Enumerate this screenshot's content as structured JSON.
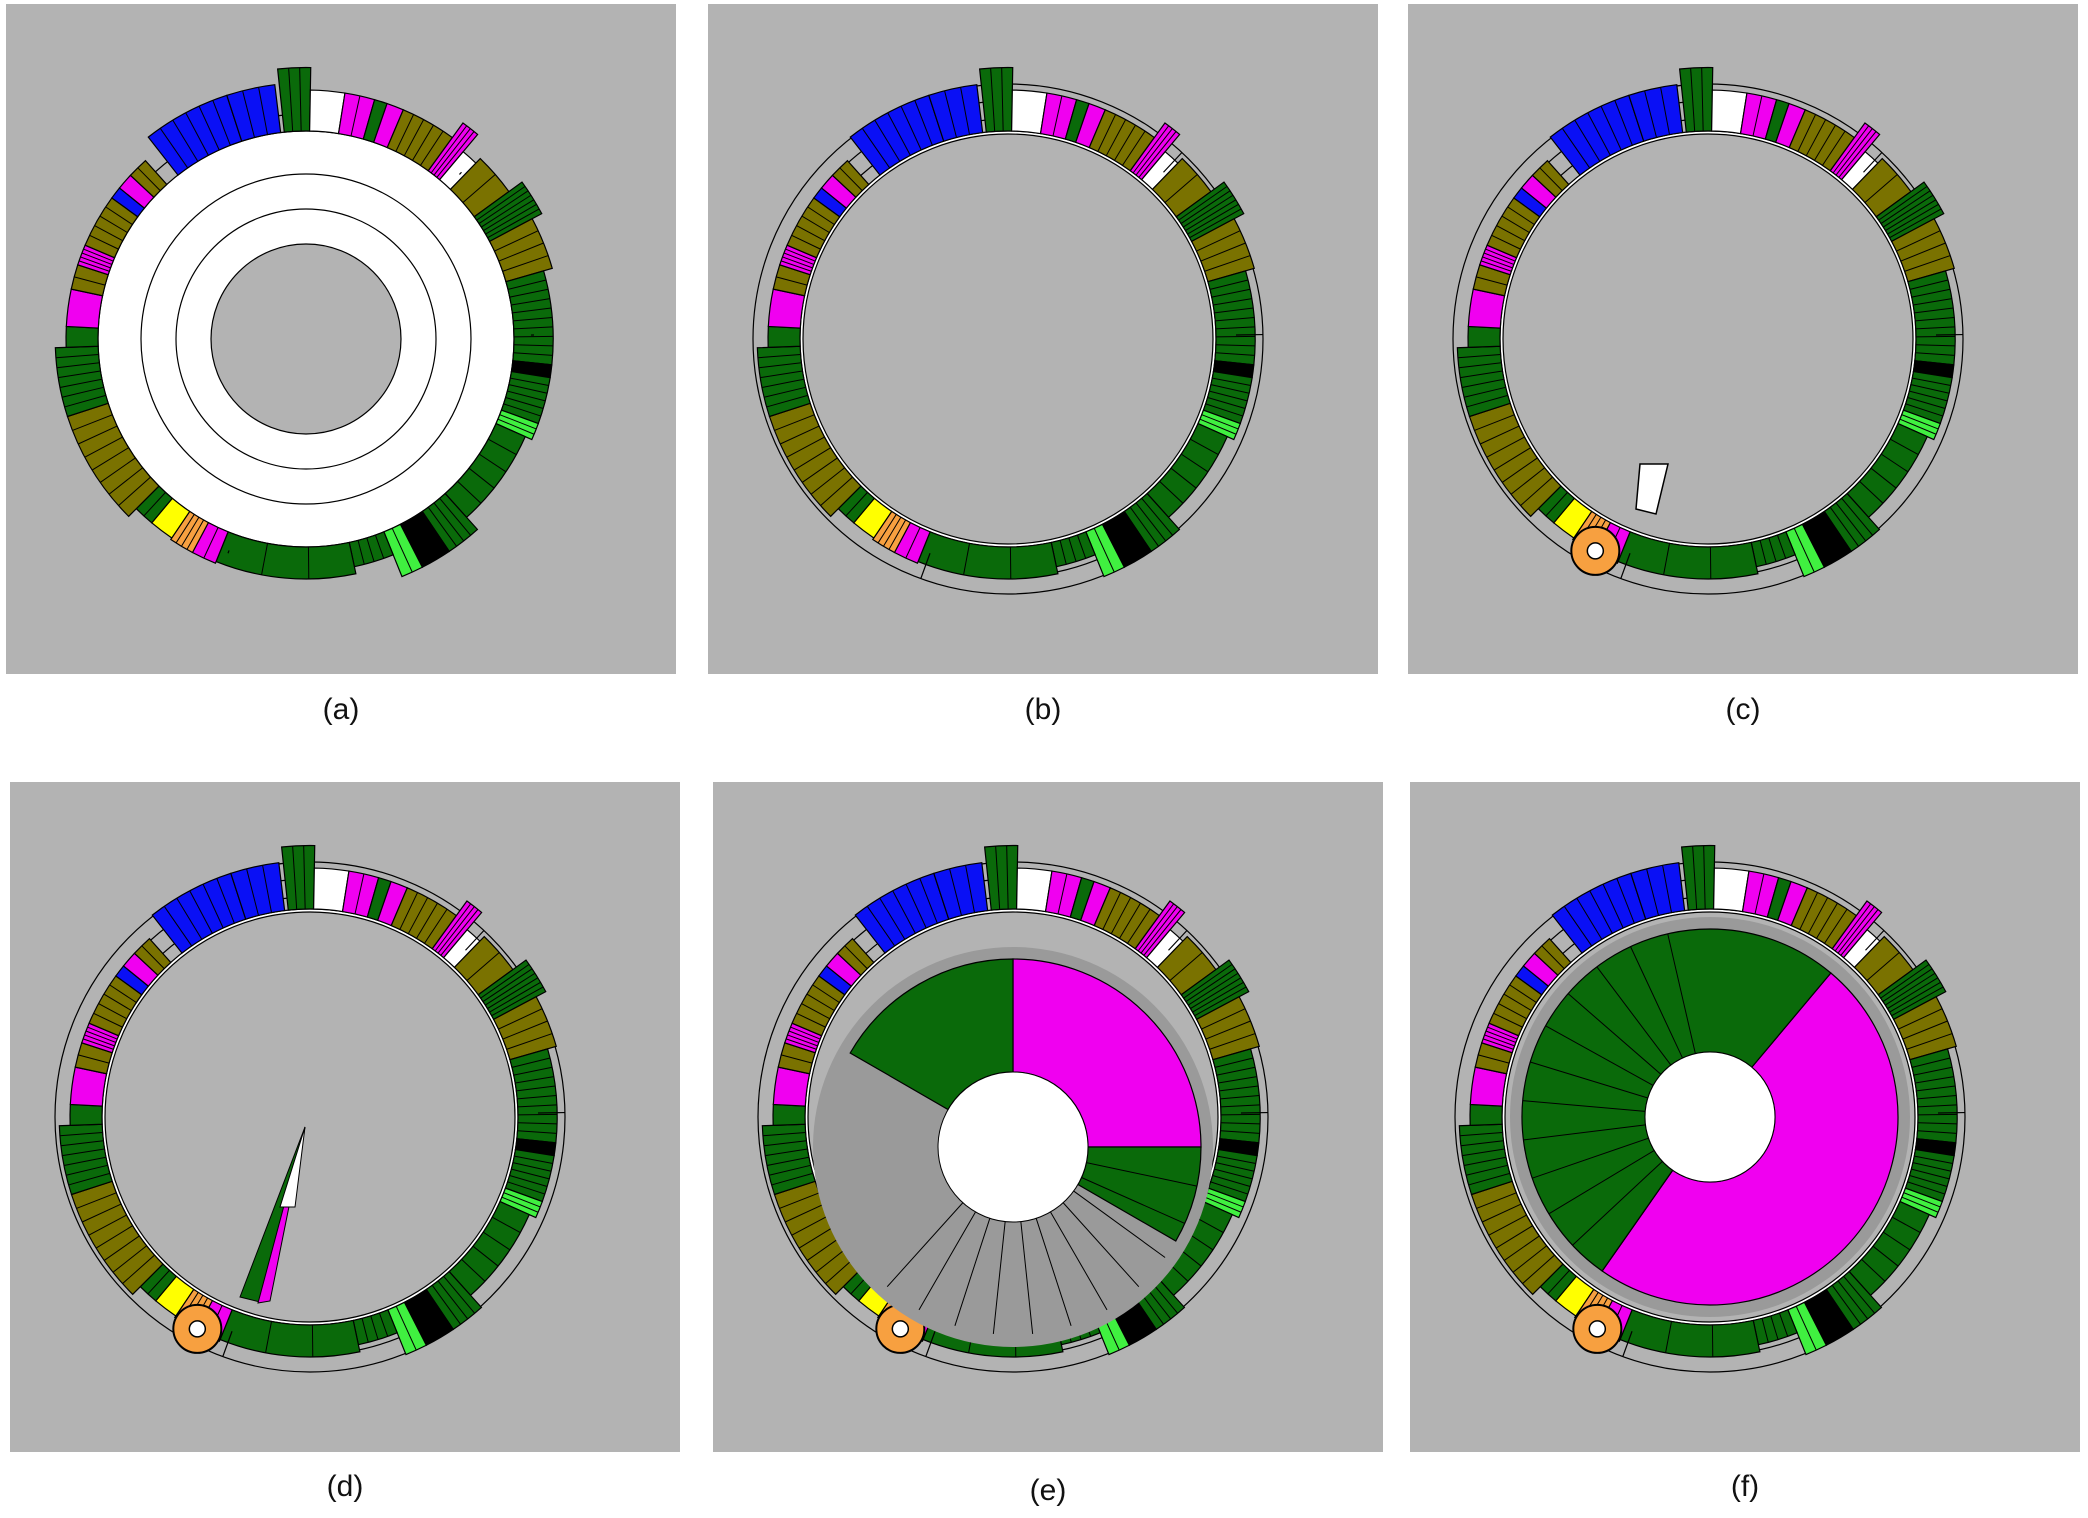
{
  "colors": {
    "background": "#b3b3b3",
    "blue": "#0a10f5",
    "magenta": "#f000f0",
    "olive": "#7a7200",
    "dark_green": "#0a6a0a",
    "light_green": "#40f040",
    "white": "#ffffff",
    "black": "#000000",
    "yellow": "#ffff00",
    "orange": "#f7a040"
  },
  "panels": [
    {
      "label": "(a)",
      "lens": "none"
    },
    {
      "label": "(b)",
      "lens": "none"
    },
    {
      "label": "(c)",
      "lens": "small-wedge"
    },
    {
      "label": "(d)",
      "lens": "thin-spike"
    },
    {
      "label": "(e)",
      "lens": "half-fan"
    },
    {
      "label": "(f)",
      "lens": "full-disc"
    }
  ]
}
